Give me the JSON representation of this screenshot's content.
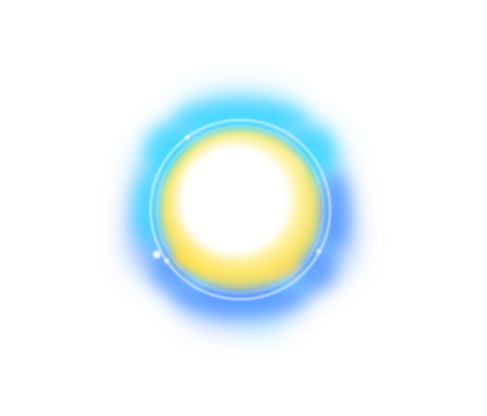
{
  "scene": {
    "background_color": "#ffffff",
    "subject": "glowing-energy-orb",
    "colors": {
      "outer_glow": "#38d6ff",
      "outer_glow_deep": "#4f8dff",
      "mid_glow": "#7be7ff",
      "inner_core": "#ffffff",
      "warm_core": "#ffe04a",
      "warm_core_soft": "#fff3a6",
      "ring": "#ffffff"
    }
  }
}
